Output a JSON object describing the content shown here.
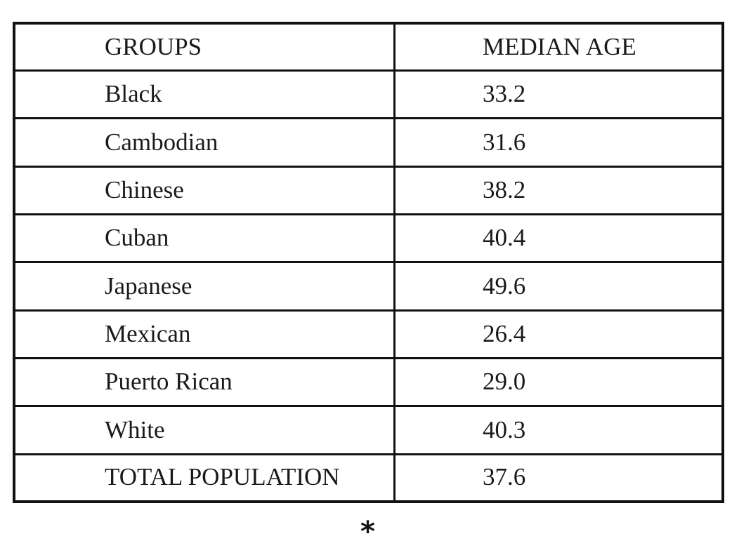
{
  "table": {
    "headers": [
      "GROUPS",
      "MEDIAN AGE"
    ],
    "rows": [
      [
        "Black",
        "33.2"
      ],
      [
        "Cambodian",
        "31.6"
      ],
      [
        "Chinese",
        "38.2"
      ],
      [
        "Cuban",
        "40.4"
      ],
      [
        "Japanese",
        "49.6"
      ],
      [
        "Mexican",
        "26.4"
      ],
      [
        "Puerto Rican",
        "29.0"
      ],
      [
        "White",
        "40.3"
      ],
      [
        "TOTAL POPULATION",
        "37.6"
      ]
    ]
  },
  "footer": {
    "ornament": "*"
  }
}
